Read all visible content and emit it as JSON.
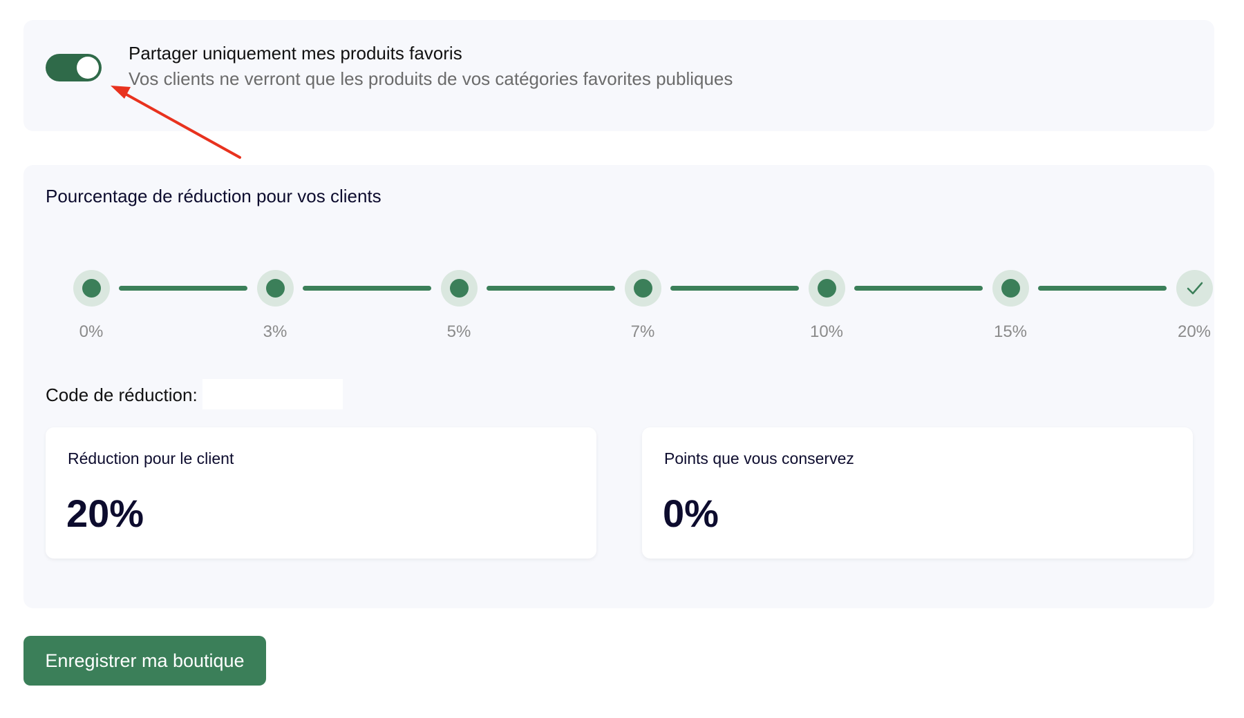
{
  "share": {
    "toggle_on": true,
    "title": "Partager uniquement mes produits favoris",
    "description": "Vos clients ne verront que les produits de vos catégories favorites publiques"
  },
  "discount": {
    "title": "Pourcentage de réduction pour vos clients",
    "steps": [
      {
        "label": "0%",
        "completed": true
      },
      {
        "label": "3%",
        "completed": true
      },
      {
        "label": "5%",
        "completed": true
      },
      {
        "label": "7%",
        "completed": true
      },
      {
        "label": "10%",
        "completed": true
      },
      {
        "label": "15%",
        "completed": true
      },
      {
        "label": "20%",
        "completed": true,
        "selected": true
      }
    ],
    "code_label": "Code de réduction:",
    "code_value": ""
  },
  "stats": {
    "client_label": "Réduction pour le client",
    "client_value": "20%",
    "points_label": "Points que vous conservez",
    "points_value": "0%"
  },
  "actions": {
    "save_label": "Enregistrer ma boutique"
  },
  "colors": {
    "accent": "#3b7f59",
    "toggle": "#2f6a49",
    "halo": "#dae7df",
    "annotation_arrow": "#e8321e"
  }
}
